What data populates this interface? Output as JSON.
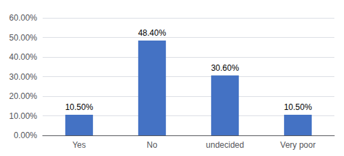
{
  "chart_data": {
    "type": "bar",
    "categories": [
      "Yes",
      "No",
      "undecided",
      "Very poor"
    ],
    "values": [
      10.5,
      48.4,
      30.6,
      10.5
    ],
    "value_labels": [
      "10.50%",
      "48.40%",
      "30.60%",
      "10.50%"
    ],
    "data_labels": true,
    "color": "#4472C4",
    "ylim": [
      0,
      60
    ],
    "yticks": [
      {
        "value": 0,
        "label": "0.00%"
      },
      {
        "value": 10,
        "label": "10.00%"
      },
      {
        "value": 20,
        "label": "20.00%"
      },
      {
        "value": 30,
        "label": "30.00%"
      },
      {
        "value": 40,
        "label": "40.00%"
      },
      {
        "value": 50,
        "label": "50.00%"
      },
      {
        "value": 60,
        "label": "60.00%"
      }
    ],
    "grid": true
  }
}
